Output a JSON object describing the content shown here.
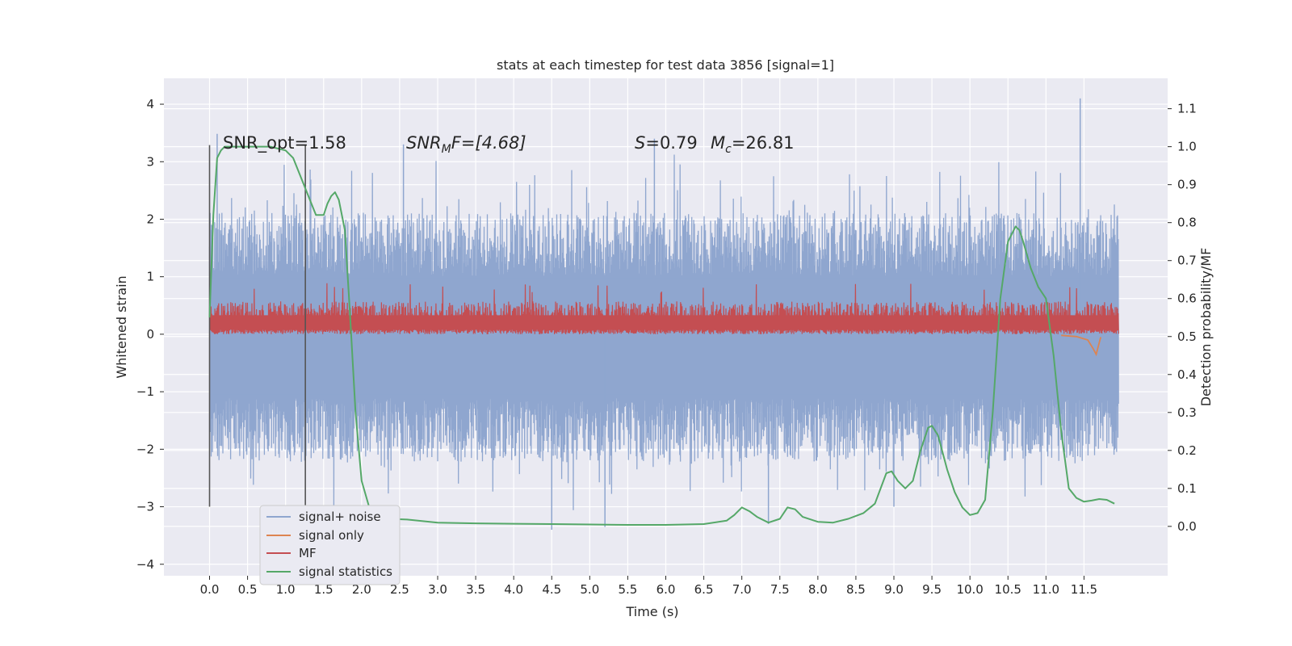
{
  "chart_data": {
    "type": "line",
    "title": "stats at each timestep for test data 3856 [signal=1]",
    "xlabel": "Time (s)",
    "ylabel": "Whitened strain",
    "y2label": "Detection probability/MF",
    "xlim": [
      -0.6,
      12.6
    ],
    "ylim": [
      -4.2,
      4.45
    ],
    "y2lim": [
      -0.13,
      1.18
    ],
    "xticks": [
      "0.0",
      "0.5",
      "1.0",
      "1.5",
      "2.0",
      "2.5",
      "3.0",
      "3.5",
      "4.0",
      "4.5",
      "5.0",
      "5.5",
      "6.0",
      "6.5",
      "7.0",
      "7.5",
      "8.0",
      "8.5",
      "9.0",
      "9.5",
      "10.0",
      "10.5",
      "11.0",
      "11.5"
    ],
    "yticks": [
      "4",
      "3",
      "2",
      "1",
      "0",
      "−1",
      "−2",
      "−3",
      "−4"
    ],
    "y2ticks": [
      "1.1",
      "1.0",
      "0.9",
      "0.8",
      "0.7",
      "0.6",
      "0.5",
      "0.4",
      "0.3",
      "0.2",
      "0.1",
      "0.0"
    ],
    "grid": true,
    "background": "#eaeaf2",
    "colors": {
      "noise": "#8fa6cf",
      "signal": "#dd8452",
      "mf": "#c44e52",
      "stat": "#55a868",
      "vline": "#555555"
    },
    "legend": {
      "placement": "lower-left",
      "entries": [
        "signal+ noise",
        "signal only",
        "MF",
        "signal statistics"
      ]
    },
    "annotations": {
      "snr_opt": "SNR_opt=1.58",
      "snr_mf_pre": "SNR",
      "snr_mf_sub": "M",
      "snr_mf_post": "F=[4.68]",
      "s_pre": "S",
      "s_post": "=0.79",
      "mc_pre": "M",
      "mc_sub": "c",
      "mc_post": "=26.81"
    },
    "vertical_lines_x": [
      0.0,
      1.26
    ],
    "noise_band": {
      "x_start": 0.0,
      "x_end": 11.95,
      "upper_typical": 1.4,
      "lower_typical": -1.5,
      "peak_max": 4.1,
      "trough_min": -3.4
    },
    "mf_band": {
      "x_start": 0.0,
      "x_end": 11.95,
      "low": 0.0,
      "high_typical": 0.6,
      "peak_max": 0.9
    },
    "signal_only": {
      "x": [
        11.2,
        11.4,
        11.55,
        11.62,
        11.66,
        11.72
      ],
      "y": [
        -0.02,
        -0.04,
        -0.1,
        -0.25,
        -0.35,
        -0.05
      ]
    },
    "series": [
      {
        "name": "signal statistics",
        "axis": "right",
        "x": [
          0.0,
          0.05,
          0.1,
          0.15,
          0.2,
          0.3,
          0.5,
          0.8,
          1.0,
          1.1,
          1.2,
          1.3,
          1.4,
          1.5,
          1.55,
          1.6,
          1.65,
          1.7,
          1.78,
          1.85,
          1.92,
          2.0,
          2.1,
          2.2,
          2.35,
          2.6,
          3.0,
          3.5,
          4.0,
          4.5,
          5.0,
          5.5,
          6.0,
          6.5,
          6.8,
          6.9,
          7.0,
          7.1,
          7.2,
          7.35,
          7.5,
          7.6,
          7.7,
          7.8,
          8.0,
          8.2,
          8.4,
          8.6,
          8.75,
          8.9,
          8.97,
          9.05,
          9.15,
          9.25,
          9.35,
          9.45,
          9.5,
          9.58,
          9.7,
          9.8,
          9.9,
          10.0,
          10.1,
          10.2,
          10.3,
          10.4,
          10.5,
          10.6,
          10.65,
          10.7,
          10.8,
          10.9,
          11.0,
          11.1,
          11.2,
          11.3,
          11.4,
          11.5,
          11.6,
          11.7,
          11.8,
          11.9
        ],
        "y": [
          0.55,
          0.82,
          0.97,
          0.99,
          1.0,
          1.0,
          1.0,
          1.0,
          0.99,
          0.97,
          0.92,
          0.87,
          0.82,
          0.82,
          0.85,
          0.87,
          0.88,
          0.86,
          0.78,
          0.55,
          0.3,
          0.12,
          0.05,
          0.03,
          0.02,
          0.018,
          0.01,
          0.008,
          0.007,
          0.006,
          0.005,
          0.004,
          0.004,
          0.006,
          0.015,
          0.03,
          0.05,
          0.04,
          0.025,
          0.01,
          0.02,
          0.05,
          0.045,
          0.025,
          0.012,
          0.01,
          0.02,
          0.035,
          0.06,
          0.14,
          0.145,
          0.12,
          0.1,
          0.12,
          0.2,
          0.26,
          0.265,
          0.24,
          0.15,
          0.09,
          0.05,
          0.03,
          0.035,
          0.07,
          0.3,
          0.6,
          0.75,
          0.79,
          0.78,
          0.75,
          0.68,
          0.63,
          0.6,
          0.45,
          0.25,
          0.1,
          0.075,
          0.065,
          0.068,
          0.072,
          0.07,
          0.06
        ]
      }
    ]
  }
}
